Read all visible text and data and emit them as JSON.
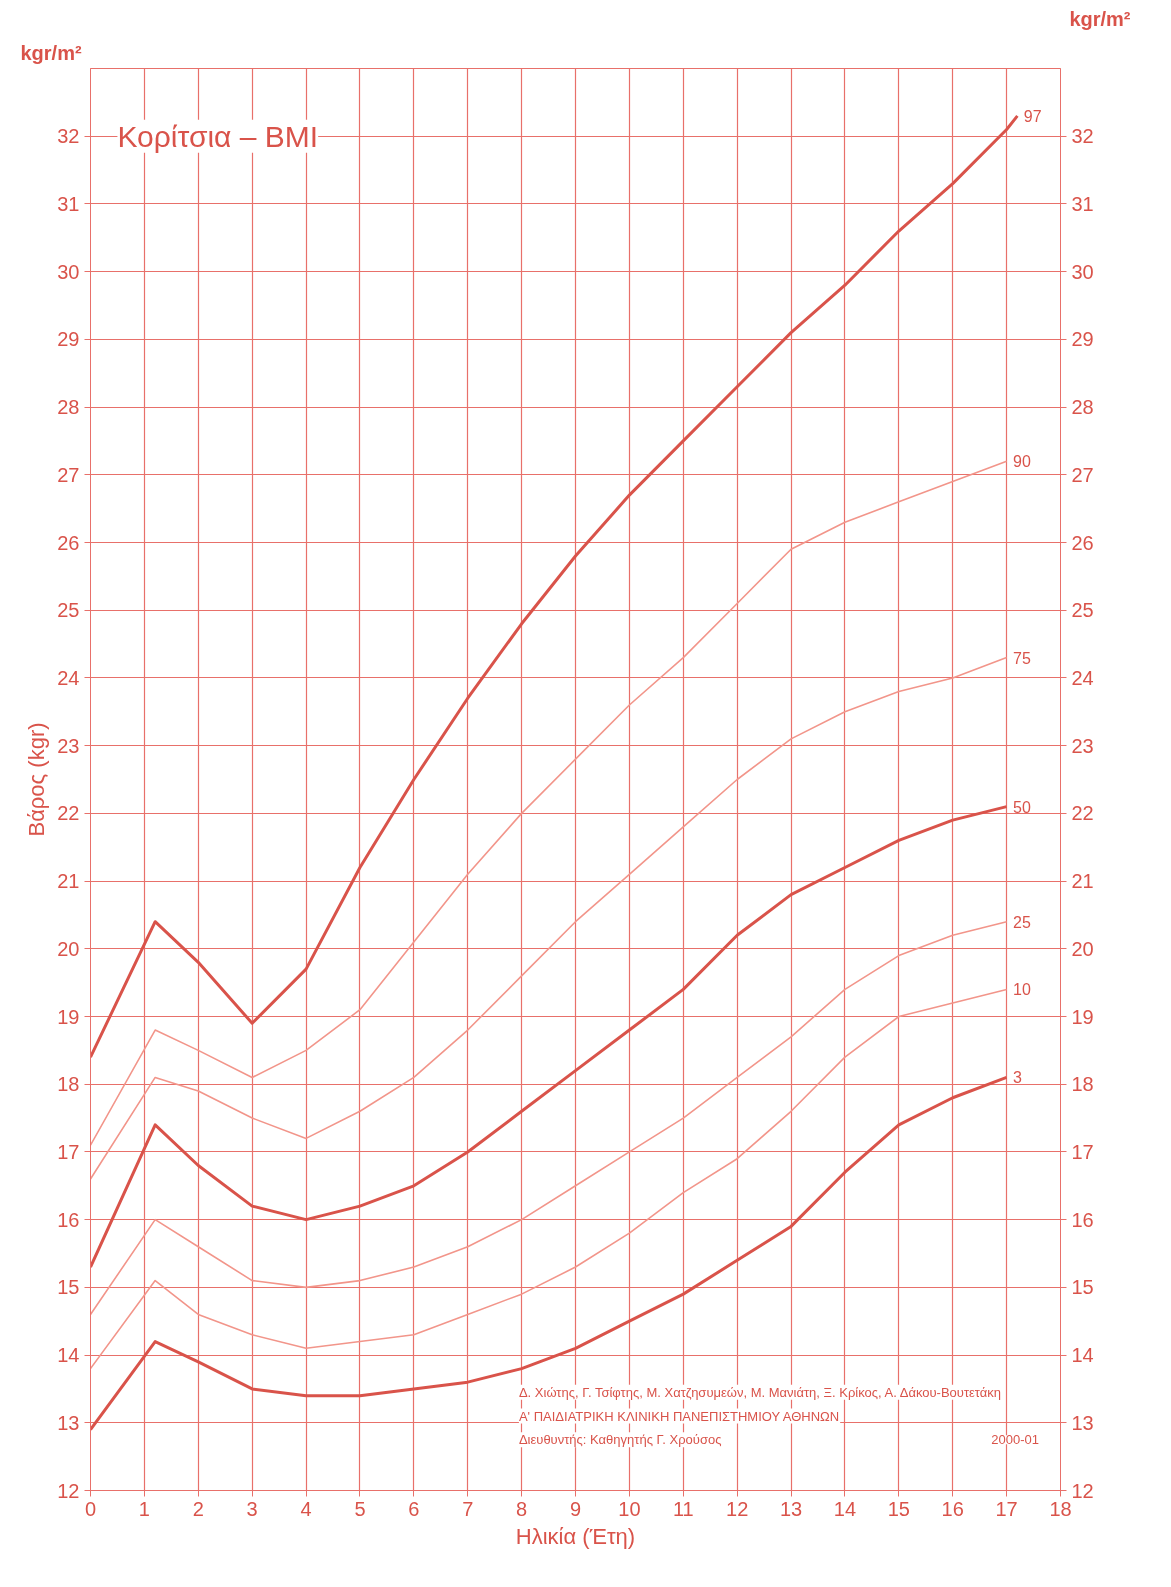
{
  "chart_data": {
    "type": "line",
    "title": "Κορίτσια – BMI",
    "xlabel": "Ηλικία (Έτη)",
    "ylabel": "Βάρος (kgr)",
    "y2label": "kgr/m²",
    "annotations": [
      "kgr/m²",
      "Δ. Χιώτης, Γ. Τσίφτης, Μ. Χατζησυμεών, Μ. Μανιάτη, Ξ. Κρίκος, Α. Δάκου-Βουτετάκη",
      "Α' ΠΑΙΔΙΑΤΡΙΚΗ ΚΛΙΝΙΚΗ ΠΑΝΕΠΙΣΤΗΜΙΟΥ ΑΘΗΝΩΝ",
      "Διευθυντής: Καθηγητής Γ. Χρούσος",
      "2000-01"
    ],
    "x": [
      0,
      1.2,
      2,
      3,
      4,
      5,
      6,
      7,
      8,
      9,
      10,
      11,
      12,
      13,
      14,
      15,
      16,
      17
    ],
    "series": [
      {
        "name": "97",
        "color": "#d9534a",
        "x": [
          0,
          1.2,
          2,
          3,
          4,
          5,
          6,
          7,
          8,
          9,
          10,
          11,
          12,
          13,
          14,
          15,
          16,
          17,
          17.2
        ],
        "values": [
          18.4,
          20.4,
          19.8,
          18.9,
          19.7,
          21.2,
          22.5,
          23.7,
          24.8,
          25.8,
          26.7,
          27.5,
          28.3,
          29.1,
          29.8,
          30.6,
          31.3,
          32.1,
          32.3
        ]
      },
      {
        "name": "90",
        "color": "#f2958a",
        "values": [
          17.1,
          18.8,
          18.5,
          18.1,
          18.5,
          19.1,
          20.1,
          21.1,
          22.0,
          22.8,
          23.6,
          24.3,
          25.1,
          25.9,
          26.3,
          26.6,
          26.9,
          27.2
        ]
      },
      {
        "name": "75",
        "color": "#f2958a",
        "values": [
          16.6,
          18.1,
          17.9,
          17.5,
          17.2,
          17.6,
          18.1,
          18.8,
          19.6,
          20.4,
          21.1,
          21.8,
          22.5,
          23.1,
          23.5,
          23.8,
          24.0,
          24.3
        ]
      },
      {
        "name": "50",
        "color": "#d9534a",
        "values": [
          15.3,
          17.4,
          16.8,
          16.2,
          16.0,
          16.2,
          16.5,
          17.0,
          17.6,
          18.2,
          18.8,
          19.4,
          20.2,
          20.8,
          21.2,
          21.6,
          21.9,
          22.1
        ]
      },
      {
        "name": "25",
        "color": "#f2958a",
        "values": [
          14.6,
          16.0,
          15.6,
          15.1,
          15.0,
          15.1,
          15.3,
          15.6,
          16.0,
          16.5,
          17.0,
          17.5,
          18.1,
          18.7,
          19.4,
          19.9,
          20.2,
          20.4
        ]
      },
      {
        "name": "10",
        "color": "#f2958a",
        "values": [
          13.8,
          15.1,
          14.6,
          14.3,
          14.1,
          14.2,
          14.3,
          14.6,
          14.9,
          15.3,
          15.8,
          16.4,
          16.9,
          17.6,
          18.4,
          19.0,
          19.2,
          19.4
        ]
      },
      {
        "name": "3",
        "color": "#d9534a",
        "values": [
          12.9,
          14.2,
          13.9,
          13.5,
          13.4,
          13.4,
          13.5,
          13.6,
          13.8,
          14.1,
          14.5,
          14.9,
          15.4,
          15.9,
          16.7,
          17.4,
          17.8,
          18.1
        ]
      }
    ],
    "xlim": [
      0,
      18
    ],
    "xticks": [
      0,
      1,
      2,
      3,
      4,
      5,
      6,
      7,
      8,
      9,
      10,
      11,
      12,
      13,
      14,
      15,
      16,
      17,
      18
    ],
    "ylim": [
      12,
      33
    ],
    "yticks": [
      12,
      13,
      14,
      15,
      16,
      17,
      18,
      19,
      20,
      21,
      22,
      23,
      24,
      25,
      26,
      27,
      28,
      29,
      30,
      31,
      32
    ],
    "y2lim": [
      12,
      33
    ],
    "y2ticks": [
      12,
      13,
      14,
      15,
      16,
      17,
      18,
      19,
      20,
      21,
      22,
      23,
      24,
      25,
      26,
      27,
      28,
      29,
      30,
      31,
      32
    ],
    "grid": true,
    "line_style": "solid",
    "marker": "none"
  }
}
